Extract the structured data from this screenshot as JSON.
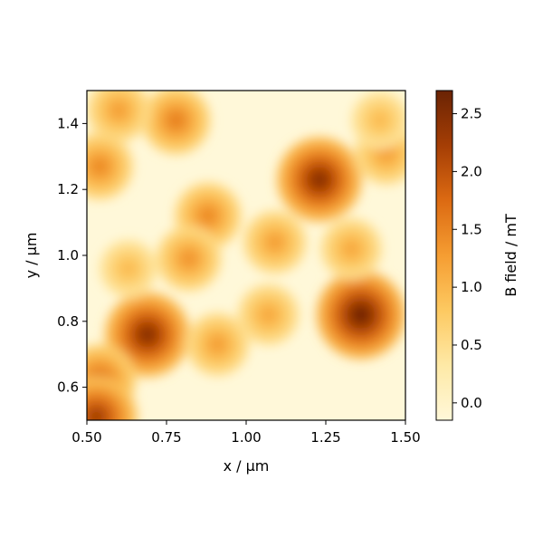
{
  "chart_data": {
    "type": "heatmap",
    "title": "",
    "xlabel": "x / µm",
    "ylabel": "y / µm",
    "xlim": [
      0.5,
      1.5
    ],
    "ylim": [
      0.5,
      1.5
    ],
    "x_ticks": [
      0.5,
      0.75,
      1.0,
      1.25,
      1.5
    ],
    "x_tick_labels": [
      "0.50",
      "0.75",
      "1.00",
      "1.25",
      "1.50"
    ],
    "y_ticks": [
      0.6,
      0.8,
      1.0,
      1.2,
      1.4
    ],
    "y_tick_labels": [
      "0.6",
      "0.8",
      "1.0",
      "1.2",
      "1.4"
    ],
    "colorbar": {
      "label": "B field / mT",
      "range": [
        -0.15,
        2.7
      ],
      "ticks": [
        0.0,
        0.5,
        1.0,
        1.5,
        2.0,
        2.5
      ],
      "tick_labels": [
        "0.0",
        "0.5",
        "1.0",
        "1.5",
        "2.0",
        "2.5"
      ],
      "colormap": "YlOrBr",
      "colors": [
        "#fff8d9",
        "#fee9a6",
        "#fdc961",
        "#f59d32",
        "#dc6a12",
        "#a53e05",
        "#6a2304"
      ]
    },
    "grid": false,
    "features": [
      {
        "x": 0.69,
        "y": 0.76,
        "value": 2.5
      },
      {
        "x": 1.36,
        "y": 0.82,
        "value": 2.7
      },
      {
        "x": 1.23,
        "y": 1.23,
        "value": 2.5
      },
      {
        "x": 0.78,
        "y": 1.41,
        "value": 1.6
      },
      {
        "x": 0.6,
        "y": 1.44,
        "value": 1.3
      },
      {
        "x": 0.54,
        "y": 1.27,
        "value": 1.5
      },
      {
        "x": 0.88,
        "y": 1.12,
        "value": 1.5
      },
      {
        "x": 1.09,
        "y": 1.04,
        "value": 1.3
      },
      {
        "x": 1.33,
        "y": 1.02,
        "value": 1.2
      },
      {
        "x": 1.44,
        "y": 1.31,
        "value": 1.3
      },
      {
        "x": 1.42,
        "y": 1.41,
        "value": 1.0
      },
      {
        "x": 0.54,
        "y": 0.62,
        "value": 1.8
      },
      {
        "x": 0.53,
        "y": 0.51,
        "value": 2.3
      },
      {
        "x": 0.82,
        "y": 0.99,
        "value": 1.4
      },
      {
        "x": 0.91,
        "y": 0.73,
        "value": 1.3
      },
      {
        "x": 1.07,
        "y": 0.82,
        "value": 1.2
      },
      {
        "x": 0.63,
        "y": 0.96,
        "value": 1.0
      }
    ]
  }
}
